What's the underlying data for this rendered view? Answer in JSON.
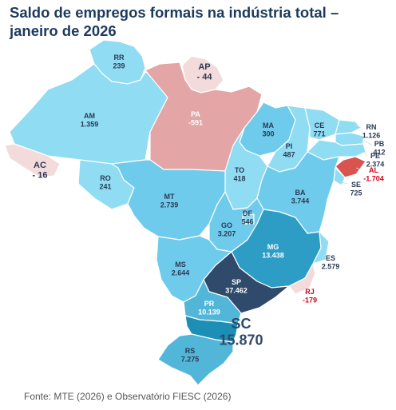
{
  "title": {
    "line1": "Saldo de empregos formais na indústria total –",
    "line2": "janeiro de 2026"
  },
  "colors": {
    "light_blue": "#8fdcf3",
    "mid_blue": "#6fcbeb",
    "blue": "#52b6d8",
    "dark_blue": "#2d9dc6",
    "navy": "#2f4a6b",
    "sc_teal": "#1c8fb6",
    "pink": "#f3dbdb",
    "salmon": "#e3a5a5",
    "red": "#d9534f",
    "label_dark": "#2b3a55",
    "label_negative": "#d0021b"
  },
  "states": [
    {
      "uf": "RR",
      "value": "239"
    },
    {
      "uf": "AP",
      "value": "- 44"
    },
    {
      "uf": "AM",
      "value": "1.359"
    },
    {
      "uf": "PA",
      "value": "-591"
    },
    {
      "uf": "MA",
      "value": "300"
    },
    {
      "uf": "CE",
      "value": "771"
    },
    {
      "uf": "RN",
      "value": "1.126"
    },
    {
      "uf": "PB",
      "value": "412"
    },
    {
      "uf": "PE",
      "value": "2.374"
    },
    {
      "uf": "AL",
      "value": "-1.704"
    },
    {
      "uf": "SE",
      "value": "725"
    },
    {
      "uf": "PI",
      "value": "487"
    },
    {
      "uf": "AC",
      "value": "- 16"
    },
    {
      "uf": "RO",
      "value": "241"
    },
    {
      "uf": "TO",
      "value": "418"
    },
    {
      "uf": "BA",
      "value": "3.744"
    },
    {
      "uf": "MT",
      "value": "2.739"
    },
    {
      "uf": "DF",
      "value": "546"
    },
    {
      "uf": "GO",
      "value": "3.207"
    },
    {
      "uf": "MG",
      "value": "13.438"
    },
    {
      "uf": "ES",
      "value": "2.579"
    },
    {
      "uf": "MS",
      "value": "2.644"
    },
    {
      "uf": "SP",
      "value": "37.462"
    },
    {
      "uf": "RJ",
      "value": "-179"
    },
    {
      "uf": "PR",
      "value": "10.139"
    },
    {
      "uf": "SC",
      "value": "15.870"
    },
    {
      "uf": "RS",
      "value": "7.275"
    }
  ],
  "source": "Fonte: MTE (2026) e Observatório FIESC (2026)"
}
